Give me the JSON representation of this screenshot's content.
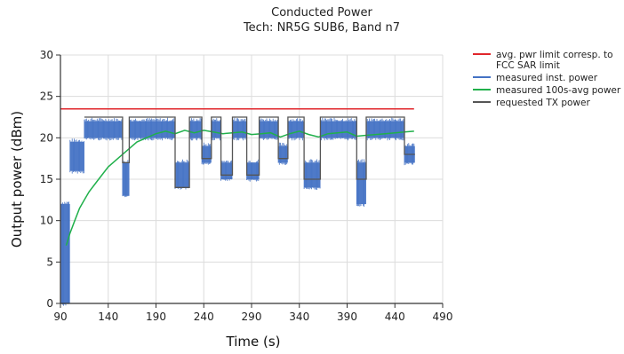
{
  "chart_data": {
    "type": "line",
    "title": "Conducted Power",
    "subtitle": "Tech: NR5G SUB6, Band n7",
    "xlabel": "Time (s)",
    "ylabel": "Output power (dBm)",
    "xlim": [
      90,
      490
    ],
    "ylim": [
      0,
      30
    ],
    "x_ticks": [
      "90",
      "140",
      "190",
      "240",
      "290",
      "340",
      "390",
      "440",
      "490"
    ],
    "y_ticks": [
      "0",
      "5",
      "10",
      "15",
      "20",
      "25",
      "30"
    ],
    "grid": true,
    "legend_position": "right",
    "series": [
      {
        "name": "avg. pwr limit corresp. to FCC SAR limit",
        "color": "#e0262b",
        "style": "line",
        "x": [
          90,
          460
        ],
        "y": [
          23.5,
          23.5
        ]
      },
      {
        "name": "measured inst. power",
        "color": "#4472c4",
        "style": "band",
        "segments": [
          {
            "x": [
              90,
              100
            ],
            "low": 0,
            "high": 12
          },
          {
            "x": [
              100,
              115
            ],
            "low": 16,
            "high": 19.5
          },
          {
            "x": [
              115,
              155
            ],
            "low": 20,
            "high": 22
          },
          {
            "x": [
              155,
              162
            ],
            "low": 13,
            "high": 17
          },
          {
            "x": [
              162,
              210
            ],
            "low": 20,
            "high": 22
          },
          {
            "x": [
              210,
              225
            ],
            "low": 14,
            "high": 17
          },
          {
            "x": [
              225,
              238
            ],
            "low": 20,
            "high": 22
          },
          {
            "x": [
              238,
              248
            ],
            "low": 17,
            "high": 19
          },
          {
            "x": [
              248,
              258
            ],
            "low": 20,
            "high": 22
          },
          {
            "x": [
              258,
              270
            ],
            "low": 15,
            "high": 17
          },
          {
            "x": [
              270,
              285
            ],
            "low": 20,
            "high": 22
          },
          {
            "x": [
              285,
              298
            ],
            "low": 15,
            "high": 17
          },
          {
            "x": [
              298,
              318
            ],
            "low": 20,
            "high": 22
          },
          {
            "x": [
              318,
              328
            ],
            "low": 17,
            "high": 19
          },
          {
            "x": [
              328,
              345
            ],
            "low": 20,
            "high": 22
          },
          {
            "x": [
              345,
              362
            ],
            "low": 14,
            "high": 17
          },
          {
            "x": [
              362,
              400
            ],
            "low": 20,
            "high": 22
          },
          {
            "x": [
              400,
              410
            ],
            "low": 12,
            "high": 17
          },
          {
            "x": [
              410,
              450
            ],
            "low": 20,
            "high": 22
          },
          {
            "x": [
              450,
              461
            ],
            "low": 17,
            "high": 19
          }
        ]
      },
      {
        "name": "measured 100s-avg power",
        "color": "#20b04b",
        "style": "line",
        "x": [
          96,
          100,
          105,
          110,
          115,
          120,
          130,
          140,
          150,
          160,
          170,
          180,
          190,
          200,
          210,
          220,
          230,
          240,
          250,
          260,
          270,
          280,
          290,
          300,
          310,
          320,
          330,
          340,
          350,
          360,
          370,
          380,
          390,
          400,
          410,
          420,
          430,
          440,
          450,
          460
        ],
        "y": [
          7,
          8.5,
          10,
          11.5,
          12.5,
          13.5,
          15,
          16.5,
          17.5,
          18.5,
          19.5,
          20,
          20.5,
          20.8,
          20.5,
          20.9,
          20.6,
          20.9,
          20.7,
          20.5,
          20.6,
          20.7,
          20.4,
          20.5,
          20.6,
          20.1,
          20.5,
          20.8,
          20.4,
          20.1,
          20.5,
          20.6,
          20.7,
          20.2,
          20.3,
          20.4,
          20.5,
          20.6,
          20.7,
          20.8
        ]
      },
      {
        "name": "requested TX power",
        "color": "#555555",
        "style": "step",
        "x": [
          115,
          155,
          155,
          162,
          162,
          210,
          210,
          225,
          225,
          238,
          238,
          248,
          248,
          258,
          258,
          270,
          270,
          285,
          285,
          298,
          298,
          318,
          318,
          328,
          328,
          345,
          345,
          362,
          362,
          400,
          400,
          410,
          410,
          450,
          450,
          461
        ],
        "y": [
          22.5,
          22.5,
          17,
          17,
          22.5,
          22.5,
          14,
          14,
          22.5,
          22.5,
          17.5,
          17.5,
          22.5,
          22.5,
          15.5,
          15.5,
          22.5,
          22.5,
          15.5,
          15.5,
          22.5,
          22.5,
          17.5,
          17.5,
          22.5,
          22.5,
          15,
          15,
          22.5,
          22.5,
          15,
          15,
          22.5,
          22.5,
          18,
          18
        ]
      }
    ]
  }
}
